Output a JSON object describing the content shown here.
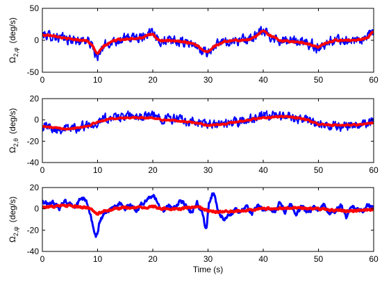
{
  "chart_data": [
    {
      "type": "line",
      "title": "",
      "ylabel": "Ω",
      "ylabel_sub": "2,φ",
      "ylabel_unit": "(deg/s)",
      "xlabel": "",
      "xlim": [
        0,
        60
      ],
      "ylim": [
        -50,
        50
      ],
      "x_ticks": [
        0,
        10,
        20,
        30,
        40,
        50,
        60
      ],
      "y_ticks": [
        -50,
        0,
        50
      ],
      "grid": false,
      "series": [
        {
          "color": "#0000ff",
          "noise": 12,
          "x": [
            0,
            2,
            4,
            6,
            8,
            9,
            10,
            11,
            13,
            15,
            18,
            19,
            20,
            21,
            23,
            25,
            27,
            28,
            29,
            30,
            31,
            33,
            35,
            37,
            39,
            40,
            41,
            43,
            45,
            47,
            49,
            50,
            51,
            53,
            55,
            57,
            59,
            60
          ],
          "y": [
            8,
            7,
            2,
            0,
            0,
            -8,
            -30,
            -10,
            0,
            2,
            6,
            10,
            18,
            0,
            -2,
            -3,
            -5,
            -10,
            -18,
            -20,
            -10,
            -2,
            0,
            0,
            8,
            15,
            8,
            0,
            -2,
            -2,
            -8,
            -13,
            -5,
            0,
            0,
            0,
            5,
            15
          ]
        },
        {
          "color": "#ff0000",
          "noise": 2,
          "x": [
            0,
            2,
            4,
            6,
            8,
            9,
            10,
            11,
            13,
            15,
            18,
            19,
            20,
            21,
            23,
            25,
            27,
            28,
            29,
            30,
            31,
            33,
            35,
            37,
            39,
            40,
            41,
            43,
            45,
            47,
            49,
            50,
            51,
            53,
            55,
            57,
            59,
            60
          ],
          "y": [
            8,
            8,
            3,
            1,
            0,
            -8,
            -22,
            -10,
            0,
            2,
            4,
            7,
            10,
            0,
            -1,
            -2,
            -4,
            -8,
            -15,
            -18,
            -10,
            -2,
            0,
            0,
            8,
            15,
            9,
            0,
            -2,
            -3,
            -8,
            -12,
            -5,
            0,
            0,
            0,
            5,
            14
          ]
        }
      ]
    },
    {
      "type": "line",
      "title": "",
      "ylabel": "Ω",
      "ylabel_sub": "2,θ",
      "ylabel_unit": "(deg/s)",
      "xlabel": "",
      "xlim": [
        0,
        60
      ],
      "ylim": [
        -40,
        20
      ],
      "x_ticks": [
        0,
        10,
        20,
        30,
        40,
        50,
        60
      ],
      "y_ticks": [
        -40,
        -20,
        0,
        20
      ],
      "grid": false,
      "series": [
        {
          "color": "#0000ff",
          "noise": 7,
          "x": [
            0,
            3,
            5,
            8,
            10,
            12,
            15,
            18,
            20,
            22,
            25,
            28,
            30,
            33,
            36,
            40,
            43,
            45,
            48,
            50,
            52,
            55,
            58,
            60
          ],
          "y": [
            -5,
            -8,
            -8,
            -5,
            -2,
            2,
            3,
            3,
            4,
            2,
            0,
            -3,
            -5,
            -4,
            -1,
            3,
            4,
            3,
            0,
            -5,
            -6,
            -5,
            -3,
            -2
          ]
        },
        {
          "color": "#ff0000",
          "noise": 1,
          "x": [
            0,
            3,
            5,
            8,
            10,
            12,
            15,
            18,
            20,
            22,
            25,
            28,
            30,
            33,
            36,
            40,
            43,
            45,
            48,
            50,
            52,
            55,
            58,
            60
          ],
          "y": [
            -6,
            -8,
            -8,
            -6,
            -2,
            1,
            2,
            2,
            2,
            0,
            -1,
            -3,
            -5,
            -4,
            -1,
            2,
            3,
            3,
            0,
            -4,
            -5,
            -5,
            -4,
            -3
          ]
        }
      ]
    },
    {
      "type": "line",
      "title": "",
      "ylabel": "Ω",
      "ylabel_sub": "2,ψ",
      "ylabel_unit": "(deg/s)",
      "xlabel": "Time (s)",
      "xlim": [
        0,
        60
      ],
      "ylim": [
        -40,
        20
      ],
      "x_ticks": [
        0,
        10,
        20,
        30,
        40,
        50,
        60
      ],
      "y_ticks": [
        -40,
        -20,
        0,
        20
      ],
      "grid": false,
      "series": [
        {
          "color": "#0000ff",
          "noise": 3,
          "x": [
            0,
            1,
            2,
            3,
            4,
            5,
            6,
            7,
            8,
            9,
            9.7,
            10.5,
            11,
            12,
            13,
            14,
            15,
            16,
            17,
            18,
            19,
            20,
            21,
            22,
            23,
            24,
            25,
            26,
            27,
            28,
            29,
            29.7,
            30.2,
            31,
            32,
            33,
            34,
            35,
            36,
            37,
            38,
            39,
            40,
            41,
            42,
            43,
            44,
            45,
            46,
            47,
            48,
            49,
            50,
            51,
            52,
            53,
            54,
            55,
            56,
            57,
            58,
            59,
            60
          ],
          "y": [
            7,
            5,
            6,
            0,
            7,
            4,
            2,
            10,
            8,
            -12,
            -28,
            -10,
            -6,
            -3,
            2,
            5,
            1,
            4,
            -2,
            5,
            9,
            13,
            5,
            -2,
            3,
            0,
            8,
            4,
            -4,
            6,
            -5,
            -20,
            6,
            15,
            -4,
            -10,
            -5,
            0,
            -3,
            2,
            -4,
            4,
            -2,
            1,
            -4,
            6,
            -3,
            5,
            -5,
            3,
            -5,
            2,
            -1,
            4,
            -3,
            -3,
            4,
            -8,
            3,
            0,
            -3,
            4,
            0
          ]
        },
        {
          "color": "#ff0000",
          "noise": 1.5,
          "x": [
            0,
            2,
            4,
            6,
            8,
            9,
            10,
            11,
            13,
            15,
            18,
            20,
            22,
            25,
            28,
            30,
            32,
            35,
            40,
            45,
            50,
            55,
            60
          ],
          "y": [
            2,
            2,
            3,
            2,
            1,
            0,
            -5,
            -2,
            0,
            1,
            1,
            2,
            0,
            0,
            2,
            -2,
            -3,
            -2,
            0,
            1,
            0,
            -2,
            -1
          ]
        }
      ]
    }
  ]
}
